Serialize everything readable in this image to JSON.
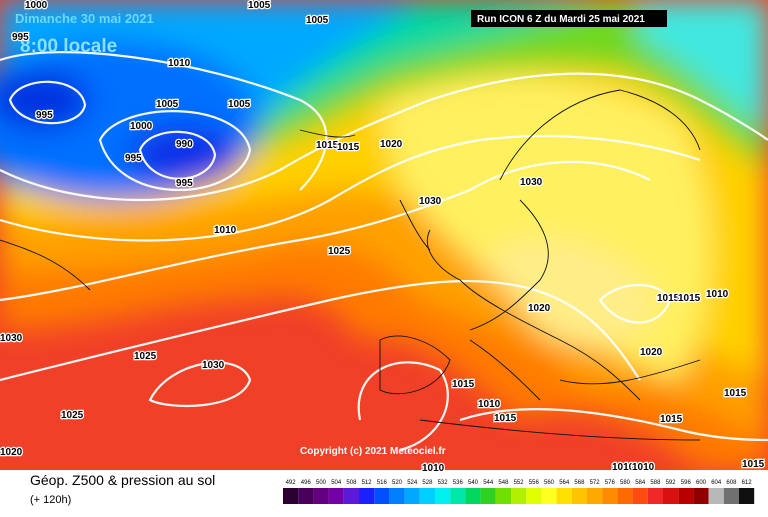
{
  "header": {
    "date": "Dimanche 30 mai 2021",
    "time": "8:00 locale",
    "run": "Run ICON 6 Z du Mardi 25 mai 2021"
  },
  "copyright": "Copyright (c) 2021 Meteociel.fr",
  "legend": {
    "title": "Géop. Z500 & pression au sol",
    "subtitle": "(+ 120h)"
  },
  "colorbar": {
    "levels": [
      492,
      496,
      500,
      504,
      508,
      512,
      516,
      520,
      524,
      528,
      532,
      536,
      540,
      544,
      548,
      552,
      556,
      560,
      564,
      568,
      572,
      576,
      580,
      584,
      588,
      592,
      596,
      600,
      604,
      608,
      612
    ],
    "colors": [
      "#2a0030",
      "#48005a",
      "#620080",
      "#7400a8",
      "#5a1ad8",
      "#1a20ff",
      "#0050ff",
      "#0080ff",
      "#00a8ff",
      "#00d0ff",
      "#00f0f0",
      "#00e8a8",
      "#00d860",
      "#30d020",
      "#70e000",
      "#b0f000",
      "#e0ff00",
      "#ffff20",
      "#ffe000",
      "#ffc400",
      "#ffa800",
      "#ff8c00",
      "#ff6a00",
      "#ff4a10",
      "#f02828",
      "#d81010",
      "#b80000",
      "#900000",
      "#b8b8b8",
      "#707070",
      "#101010"
    ]
  },
  "isobars": [
    "1000",
    "995",
    "1005",
    "1005",
    "1010",
    "995",
    "1005",
    "1005",
    "1000",
    "990",
    "995",
    "995",
    "1015",
    "1015",
    "1020",
    "1010",
    "1030",
    "1030",
    "1025",
    "1020",
    "1015",
    "1015",
    "1010",
    "1020",
    "1025",
    "1030",
    "1025",
    "1015",
    "1010",
    "1015",
    "1015",
    "1015",
    "1020",
    "1010",
    "1010",
    "1010",
    "1015",
    "1030"
  ]
}
